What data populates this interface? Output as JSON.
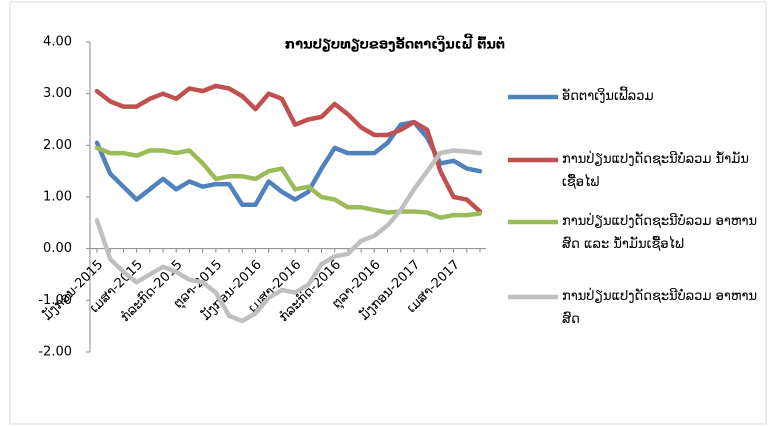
{
  "chart_data": {
    "type": "line",
    "title": "ການປຽບທຽບຂອງອັດຕາເງິນເຟີ້ ຕົ້ນຕໍ",
    "categories": [
      "ມັງກອນ-2015",
      null,
      null,
      "ເມສາ-2015",
      null,
      null,
      "ກໍລະກົດ-2015",
      null,
      null,
      "ຕຸລາ-2015",
      null,
      null,
      "ມັງກອນ-2016",
      null,
      null,
      "ເມສາ-2016",
      null,
      null,
      "ກໍລະກົດ-2016",
      null,
      null,
      "ຕຸລາ-2016",
      null,
      null,
      "ມັງກອນ-2017",
      null,
      null,
      "ເມສາ-2017",
      null,
      null
    ],
    "series": [
      {
        "name": "ອັດຕາເງິນເຟີ້ລວມ",
        "color": "#4f81bd",
        "values": [
          2.05,
          1.45,
          1.2,
          0.95,
          1.15,
          1.35,
          1.15,
          1.3,
          1.2,
          1.25,
          1.25,
          0.85,
          0.85,
          1.3,
          1.1,
          0.95,
          1.1,
          1.55,
          1.95,
          1.85,
          1.85,
          1.85,
          2.05,
          2.4,
          2.45,
          2.15,
          1.65,
          1.7,
          1.55,
          1.5
        ]
      },
      {
        "name": "ການປ່ຽນແປງດັດຊະນີບໍ່ລວມ ນ້ຳມັນເຊື້ອໄຟ",
        "color": "#c0504d",
        "values": [
          3.05,
          2.85,
          2.75,
          2.75,
          2.9,
          3.0,
          2.9,
          3.1,
          3.05,
          3.15,
          3.1,
          2.95,
          2.7,
          3.0,
          2.9,
          2.4,
          2.5,
          2.55,
          2.8,
          2.6,
          2.35,
          2.2,
          2.2,
          2.3,
          2.45,
          2.3,
          1.5,
          1.0,
          0.95,
          0.72
        ]
      },
      {
        "name": "ການປ່ຽນແປງດັດຊະນີບໍ່ລວມ ອາຫານສົດ ແລະ ນ້ຳມັນເຊື້ອໄຟ",
        "color": "#9bbb59",
        "values": [
          1.95,
          1.85,
          1.85,
          1.8,
          1.9,
          1.9,
          1.85,
          1.9,
          1.65,
          1.35,
          1.4,
          1.4,
          1.35,
          1.5,
          1.55,
          1.15,
          1.2,
          1.0,
          0.95,
          0.8,
          0.8,
          0.75,
          0.7,
          0.72,
          0.72,
          0.7,
          0.6,
          0.65,
          0.65,
          0.68
        ]
      },
      {
        "name": "ການປ່ຽນແປງດັດຊະນີບໍ່ລວມ ອາຫານສົດ",
        "color": "#bfbfbf",
        "values": [
          0.55,
          -0.2,
          -0.45,
          -0.65,
          -0.5,
          -0.35,
          -0.45,
          -0.6,
          -0.65,
          -0.85,
          -1.3,
          -1.4,
          -1.25,
          -0.95,
          -0.8,
          -0.85,
          -0.7,
          -0.3,
          -0.15,
          -0.1,
          0.15,
          0.25,
          0.45,
          0.75,
          1.15,
          1.5,
          1.85,
          1.9,
          1.88,
          1.85
        ]
      }
    ],
    "ylim": [
      -2,
      4
    ],
    "yticks": [
      {
        "value": -2,
        "label": "-2.00"
      },
      {
        "value": -1,
        "label": "-1.00"
      },
      {
        "value": 0,
        "label": "0.00"
      },
      {
        "value": 1,
        "label": "1.00"
      },
      {
        "value": 2,
        "label": "2.00"
      },
      {
        "value": 3,
        "label": "3.00"
      },
      {
        "value": 4,
        "label": "4.00"
      }
    ],
    "legend": "right"
  }
}
